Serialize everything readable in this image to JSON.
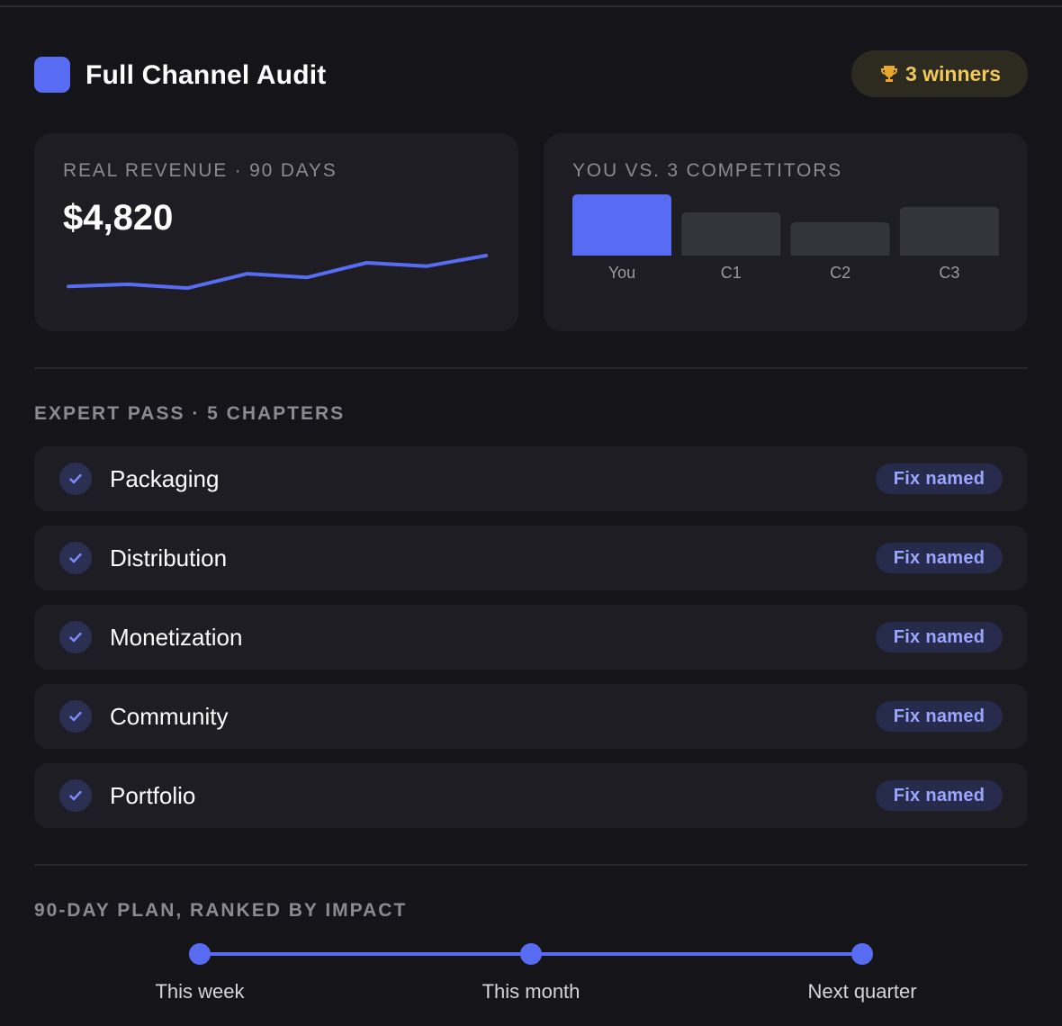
{
  "header": {
    "title": "Full Channel Audit",
    "winners_badge": "3 winners",
    "trophy_icon": "trophy-icon",
    "logo_color": "#586cf3"
  },
  "revenue_card": {
    "label": "REAL REVENUE · 90 DAYS",
    "value": "$4,820"
  },
  "competitor_card": {
    "label": "YOU VS. 3 COMPETITORS"
  },
  "chart_data": [
    {
      "type": "line",
      "x": [
        1,
        2,
        3,
        4,
        5,
        6,
        7,
        8
      ],
      "values": [
        0.1,
        0.16,
        0.05,
        0.47,
        0.36,
        0.79,
        0.69,
        1.0
      ],
      "title": "",
      "xlabel": "",
      "ylabel": "",
      "grid": false,
      "color": "#586cf3"
    },
    {
      "type": "bar",
      "categories": [
        "You",
        "C1",
        "C2",
        "C3"
      ],
      "values": [
        68,
        48,
        37,
        54
      ],
      "title": "",
      "xlabel": "",
      "ylabel": "",
      "ylim": [
        0,
        68
      ],
      "grid": false,
      "colors": [
        "#586cf3",
        "#34343b",
        "#34343b",
        "#34343b"
      ]
    }
  ],
  "expert_pass": {
    "label": "EXPERT PASS · 5 CHAPTERS",
    "chapters": [
      {
        "name": "Packaging",
        "status": "Fix named"
      },
      {
        "name": "Distribution",
        "status": "Fix named"
      },
      {
        "name": "Monetization",
        "status": "Fix named"
      },
      {
        "name": "Community",
        "status": "Fix named"
      },
      {
        "name": "Portfolio",
        "status": "Fix named"
      }
    ],
    "check_icon": "check-icon"
  },
  "plan": {
    "label": "90-DAY PLAN, RANKED BY IMPACT",
    "steps": [
      "This week",
      "This month",
      "Next quarter"
    ]
  },
  "colors": {
    "accent": "#586cf3",
    "background": "#151519",
    "card": "#1d1d23",
    "badge_text": "#9aa6ff",
    "trophy": "#f1c85a"
  }
}
